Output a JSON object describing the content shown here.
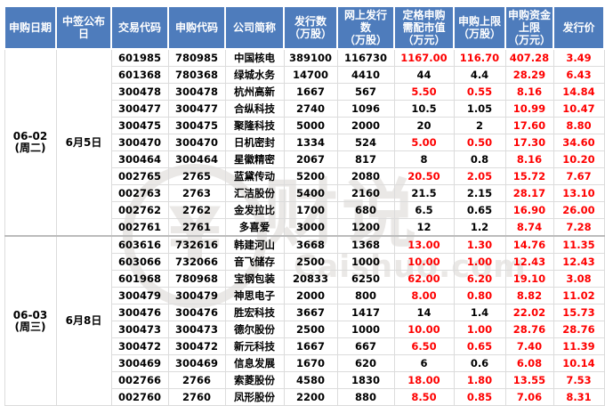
{
  "colors": {
    "header_bg": "#4e7cbc",
    "header_text": "#ffffff",
    "value_red": "#fe0000",
    "value_black": "#000000",
    "grid_line": "#dcdcdc",
    "group_separator": "#bcbcbc",
    "watermark": "#eae8e6"
  },
  "watermark": {
    "logo_icon": "yuan-circle-logo",
    "logo_glyph": "¥",
    "brand": "财说",
    "domain": "Caishuo.com"
  },
  "table": {
    "headers": [
      "申购日期",
      "中签公布\n日",
      "交易代码",
      "申购代码",
      "公司简称",
      "发行数\n（万股）",
      "网上发行\n数\n（万股）",
      "定格申购\n需配市值\n（万元）",
      "申购上限\n（万股）",
      "申购资金\n上限\n（万元）",
      "发行价"
    ],
    "groups": [
      {
        "date": "06-02\n(周二)",
        "announce": "6月5日",
        "rows": [
          {
            "code": "601985",
            "sub": "780985",
            "name": "中国核电",
            "issue": "389100",
            "online": "116730",
            "mv": "1167.00",
            "cap": "116.70",
            "fund": "407.28",
            "price": "3.49",
            "red": {
              "mv": true,
              "cap": true
            }
          },
          {
            "code": "601368",
            "sub": "780368",
            "name": "绿城水务",
            "issue": "14700",
            "online": "4410",
            "mv": "44",
            "cap": "4.4",
            "fund": "28.29",
            "price": "6.43",
            "red": {
              "mv": false,
              "cap": false
            }
          },
          {
            "code": "300478",
            "sub": "300478",
            "name": "杭州高新",
            "issue": "1667",
            "online": "567",
            "mv": "5.50",
            "cap": "0.55",
            "fund": "8.16",
            "price": "14.84",
            "red": {
              "mv": true,
              "cap": true
            }
          },
          {
            "code": "300477",
            "sub": "300477",
            "name": "合纵科技",
            "issue": "2740",
            "online": "1096",
            "mv": "10.5",
            "cap": "1.05",
            "fund": "10.99",
            "price": "10.47",
            "red": {
              "mv": false,
              "cap": false
            }
          },
          {
            "code": "300475",
            "sub": "300475",
            "name": "聚隆科技",
            "issue": "5000",
            "online": "2000",
            "mv": "20",
            "cap": "2",
            "fund": "17.60",
            "price": "8.80",
            "red": {
              "mv": false,
              "cap": false
            }
          },
          {
            "code": "300470",
            "sub": "300470",
            "name": "日机密封",
            "issue": "1334",
            "online": "524",
            "mv": "5.00",
            "cap": "0.50",
            "fund": "17.30",
            "price": "34.60",
            "red": {
              "mv": true,
              "cap": true
            }
          },
          {
            "code": "300464",
            "sub": "300464",
            "name": "星徽精密",
            "issue": "2067",
            "online": "817",
            "mv": "8",
            "cap": "0.8",
            "fund": "8.16",
            "price": "10.20",
            "red": {
              "mv": false,
              "cap": false
            }
          },
          {
            "code": "002765",
            "sub": "2765",
            "name": "蓝黛传动",
            "issue": "5200",
            "online": "2080",
            "mv": "20.50",
            "cap": "2.05",
            "fund": "15.72",
            "price": "7.67",
            "red": {
              "mv": true,
              "cap": true
            }
          },
          {
            "code": "002763",
            "sub": "2763",
            "name": "汇洁股份",
            "issue": "5400",
            "online": "2160",
            "mv": "21.5",
            "cap": "2.15",
            "fund": "28.17",
            "price": "13.10",
            "red": {
              "mv": false,
              "cap": false
            }
          },
          {
            "code": "002762",
            "sub": "2762",
            "name": "金发拉比",
            "issue": "1700",
            "online": "680",
            "mv": "6.5",
            "cap": "0.65",
            "fund": "16.90",
            "price": "26.00",
            "red": {
              "mv": false,
              "cap": false
            }
          },
          {
            "code": "002761",
            "sub": "2761",
            "name": "多喜爱",
            "issue": "3000",
            "online": "1200",
            "mv": "12",
            "cap": "1.2",
            "fund": "8.74",
            "price": "7.28",
            "red": {
              "mv": false,
              "cap": false
            }
          }
        ]
      },
      {
        "date": "06-03\n(周三)",
        "announce": "6月8日",
        "rows": [
          {
            "code": "603616",
            "sub": "732616",
            "name": "韩建河山",
            "issue": "3668",
            "online": "1368",
            "mv": "13.00",
            "cap": "1.30",
            "fund": "14.76",
            "price": "11.35",
            "red": {
              "mv": true,
              "cap": true
            }
          },
          {
            "code": "603066",
            "sub": "732066",
            "name": "音飞储存",
            "issue": "2500",
            "online": "1000",
            "mv": "10.00",
            "cap": "1.00",
            "fund": "12.43",
            "price": "12.43",
            "red": {
              "mv": true,
              "cap": true
            }
          },
          {
            "code": "601968",
            "sub": "780968",
            "name": "宝钢包装",
            "issue": "20833",
            "online": "6250",
            "mv": "62.00",
            "cap": "6.20",
            "fund": "19.10",
            "price": "3.08",
            "red": {
              "mv": true,
              "cap": true
            }
          },
          {
            "code": "300479",
            "sub": "300479",
            "name": "神思电子",
            "issue": "2000",
            "online": "800",
            "mv": "8.00",
            "cap": "0.80",
            "fund": "8.82",
            "price": "11.02",
            "red": {
              "mv": true,
              "cap": true
            }
          },
          {
            "code": "300476",
            "sub": "300476",
            "name": "胜宏科技",
            "issue": "3667",
            "online": "1417",
            "mv": "14",
            "cap": "1.4",
            "fund": "22.02",
            "price": "15.73",
            "red": {
              "mv": false,
              "cap": false
            }
          },
          {
            "code": "300473",
            "sub": "300473",
            "name": "德尔股份",
            "issue": "2500",
            "online": "1000",
            "mv": "10.00",
            "cap": "1.00",
            "fund": "28.76",
            "price": "28.76",
            "red": {
              "mv": true,
              "cap": true
            }
          },
          {
            "code": "300472",
            "sub": "300472",
            "name": "新元科技",
            "issue": "1667",
            "online": "667",
            "mv": "6.50",
            "cap": "0.65",
            "fund": "7.40",
            "price": "11.39",
            "red": {
              "mv": true,
              "cap": true
            }
          },
          {
            "code": "300469",
            "sub": "300469",
            "name": "信息发展",
            "issue": "1670",
            "online": "620",
            "mv": "6",
            "cap": "0.6",
            "fund": "6.08",
            "price": "10.14",
            "red": {
              "mv": false,
              "cap": false
            }
          },
          {
            "code": "002766",
            "sub": "2766",
            "name": "索菱股份",
            "issue": "4580",
            "online": "1830",
            "mv": "18.00",
            "cap": "1.80",
            "fund": "13.55",
            "price": "7.53",
            "red": {
              "mv": true,
              "cap": true
            }
          },
          {
            "code": "002760",
            "sub": "2760",
            "name": "凤形股份",
            "issue": "2200",
            "online": "880",
            "mv": "8.50",
            "cap": "0.85",
            "fund": "7.06",
            "price": "8.31",
            "red": {
              "mv": true,
              "cap": true
            }
          }
        ]
      }
    ]
  }
}
